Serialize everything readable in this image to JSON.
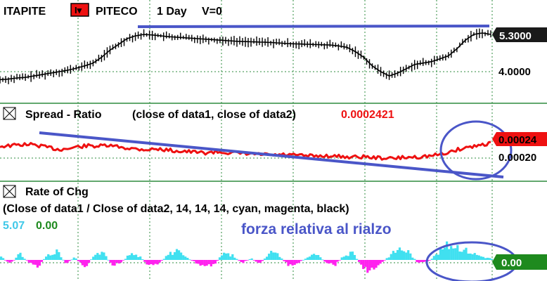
{
  "header": {
    "symbol1": "ITAPITE",
    "symbol_badge": "I▾",
    "symbol2": "PITECO",
    "interval": "1 Day",
    "volume_label": "V=0"
  },
  "colors": {
    "price": "#000000",
    "spread": "#ee1111",
    "trendline": "#4a56c8",
    "roc_positive": "#40e0f0",
    "roc_negative": "#ff22ee",
    "price_tag": "#1a1a1a",
    "roc_tag": "#1e8a1e",
    "grid": "#2e8b3e",
    "text": "#000000"
  },
  "chart_data": [
    {
      "type": "line",
      "panel": "price",
      "y_ticks": [
        "5.3000",
        "4.0000"
      ],
      "last_value": "5.3000",
      "series": [
        {
          "values": [
            3.72,
            3.74,
            3.78,
            3.8,
            3.85,
            3.9,
            3.95,
            4.0,
            4.05,
            4.12,
            4.2,
            4.3,
            4.5,
            4.75,
            4.95,
            5.15,
            5.25,
            5.3,
            5.28,
            5.25,
            5.22,
            5.2,
            5.18,
            5.16,
            5.14,
            5.12,
            5.1,
            5.08,
            5.06,
            5.05,
            5.04,
            5.03,
            5.02,
            5.0,
            4.98,
            4.97,
            4.96,
            4.95,
            4.94,
            4.93,
            4.9,
            4.85,
            4.7,
            4.5,
            4.2,
            4.0,
            3.85,
            3.95,
            4.1,
            4.25,
            4.3,
            4.35,
            4.45,
            4.55,
            4.8,
            5.1,
            5.3,
            5.35,
            5.3
          ]
        }
      ]
    },
    {
      "type": "line",
      "panel": "spread",
      "title": "Spread - Ratio",
      "subtitle": "(close of data1,  close of data2)",
      "value_text": "0.0002421",
      "y_ticks": [
        "0.00024",
        "0.00020"
      ],
      "series": [
        {
          "values": [
            0.000225,
            0.000226,
            0.000228,
            0.000229,
            0.000226,
            0.000222,
            0.000218,
            0.00022,
            0.000224,
            0.000226,
            0.000225,
            0.000226,
            0.000224,
            0.000221,
            0.000219,
            0.000218,
            0.000219,
            0.000217,
            0.000215,
            0.000214,
            0.000212,
            0.000211,
            0.000213,
            0.000212,
            0.00021,
            0.000209,
            0.000208,
            0.000207,
            0.000206,
            0.000207,
            0.000206,
            0.000205,
            0.000204,
            0.000205,
            0.000204,
            0.000203,
            0.000202,
            0.000203,
            0.000201,
            0.0002,
            0.000199,
            0.000201,
            0.000202,
            0.000203,
            0.000205,
            0.000208,
            0.000214,
            0.00022,
            0.000224,
            0.000228,
            0.000232
          ]
        }
      ]
    },
    {
      "type": "bar",
      "panel": "rate_of_change",
      "title": "Rate of Chg",
      "subtitle": "(Close of data1 / Close of data2,  14,  14,  14,  cyan,  magenta,  black)",
      "value_1": "5.07",
      "value_2": "0.00",
      "last_value": "0.00",
      "series": [
        {
          "values": [
            1.2,
            -1.5,
            2.1,
            -0.8,
            -2.4,
            1.8,
            3.1,
            -1.2,
            0.9,
            -2.8,
            1.4,
            2.6,
            -1.9,
            -0.7,
            2.2,
            1.1,
            -2.2,
            -1.6,
            1.9,
            3.0,
            0.8,
            -0.9,
            -2.5,
            -1.8,
            2.4,
            1.5,
            -1.1,
            0.6,
            -1.4,
            2.9,
            1.7,
            -2.0,
            -1.3,
            0.8,
            2.0,
            -0.6,
            -1.9,
            1.3,
            2.5,
            -2.7,
            -3.8,
            -1.4,
            1.6,
            3.9,
            2.8,
            -1.0,
            -0.8,
            1.8,
            4.8,
            5.07,
            3.6,
            2.2,
            1.1,
            0.4
          ]
        }
      ]
    }
  ],
  "annotations": {
    "forza": "forza relativa al rialzo"
  }
}
